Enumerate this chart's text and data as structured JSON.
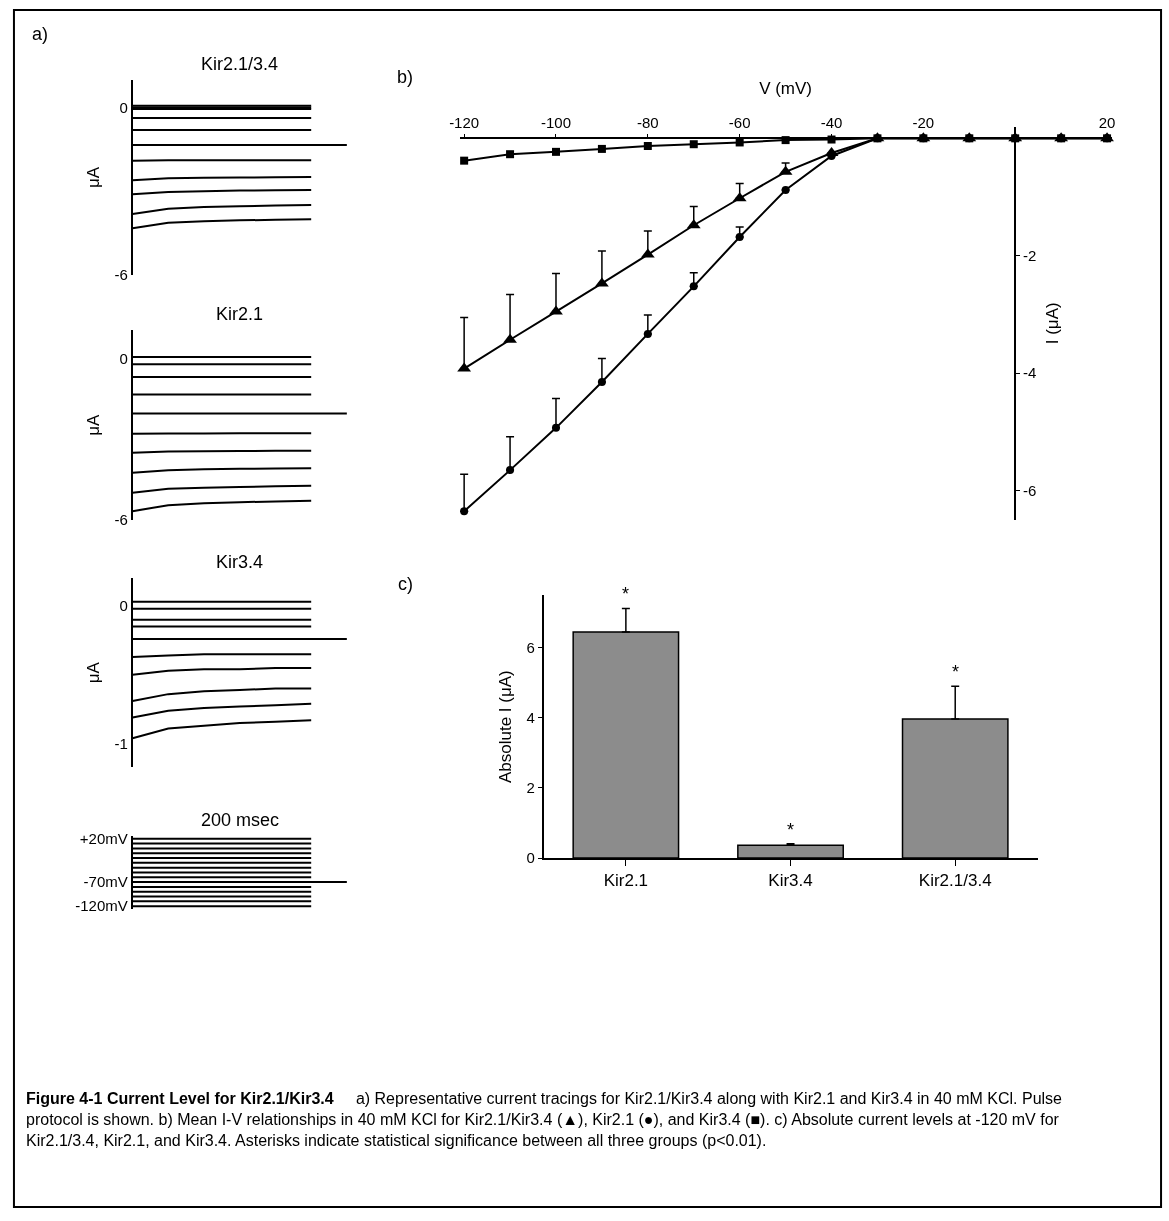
{
  "chart_data": [
    {
      "type": "line",
      "title": "Kir2.1/3.4",
      "ylabel": "μA",
      "categories": [
        null,
        null,
        null,
        null,
        null,
        null,
        null
      ],
      "tick_labels": "y",
      "marker": "none",
      "ylim": [
        -6,
        1
      ],
      "yticks": [
        0,
        -6
      ],
      "annotations": [
        "a)"
      ],
      "series": [
        {
          "color": "#000000",
          "values": [
            0.08,
            0.08,
            0.08,
            0.08,
            0.08,
            0.08,
            null
          ]
        },
        {
          "color": "#000000",
          "values": [
            0.02,
            0.02,
            0.02,
            0.02,
            0.02,
            0.02,
            null
          ]
        },
        {
          "color": "#000000",
          "values": [
            -0.04,
            -0.04,
            -0.04,
            -0.04,
            -0.04,
            -0.04,
            null
          ]
        },
        {
          "color": "#000000",
          "values": [
            -0.36,
            -0.36,
            -0.36,
            -0.36,
            -0.36,
            -0.36,
            null
          ]
        },
        {
          "color": "#000000",
          "values": [
            -0.79,
            -0.79,
            -0.79,
            -0.79,
            -0.79,
            -0.79,
            null
          ]
        },
        {
          "color": "#000000",
          "values": [
            -1.33,
            -1.33,
            -1.33,
            -1.33,
            -1.33,
            -1.33,
            -1.33
          ]
        },
        {
          "color": "#000000",
          "values": [
            -1.9,
            -1.88,
            -1.88,
            -1.88,
            -1.88,
            -1.88,
            null
          ]
        },
        {
          "color": "#000000",
          "values": [
            -2.6,
            -2.53,
            -2.51,
            -2.5,
            -2.49,
            -2.48,
            null
          ]
        },
        {
          "color": "#000000",
          "values": [
            -3.1,
            -3.02,
            -2.99,
            -2.97,
            -2.96,
            -2.95,
            null
          ]
        },
        {
          "color": "#000000",
          "values": [
            -3.81,
            -3.62,
            -3.56,
            -3.53,
            -3.51,
            -3.49,
            null
          ]
        },
        {
          "color": "#000000",
          "values": [
            -4.32,
            -4.13,
            -4.07,
            -4.04,
            -4.02,
            -4.0,
            null
          ]
        }
      ]
    },
    {
      "type": "line",
      "title": "Kir2.1",
      "ylabel": "μA",
      "categories": [
        null,
        null,
        null,
        null,
        null,
        null,
        null
      ],
      "tick_labels": "y",
      "marker": "none",
      "ylim": [
        -6,
        1.04
      ],
      "yticks": [
        0,
        -6
      ],
      "series": [
        {
          "color": "#000000",
          "values": [
            0.05,
            0.05,
            0.05,
            0.05,
            0.05,
            0.05,
            null
          ]
        },
        {
          "color": "#000000",
          "values": [
            -0.22,
            -0.22,
            -0.22,
            -0.22,
            -0.22,
            -0.22,
            null
          ]
        },
        {
          "color": "#000000",
          "values": [
            -0.69,
            -0.69,
            -0.69,
            -0.69,
            -0.69,
            -0.69,
            null
          ]
        },
        {
          "color": "#000000",
          "values": [
            -1.34,
            -1.34,
            -1.34,
            -1.34,
            -1.34,
            -1.34,
            null
          ]
        },
        {
          "color": "#000000",
          "values": [
            -2.05,
            -2.05,
            -2.05,
            -2.05,
            -2.05,
            -2.05,
            -2.05
          ]
        },
        {
          "color": "#000000",
          "values": [
            -2.8,
            -2.79,
            -2.79,
            -2.78,
            -2.78,
            -2.78,
            null
          ]
        },
        {
          "color": "#000000",
          "values": [
            -3.5,
            -3.46,
            -3.45,
            -3.44,
            -3.43,
            -3.43,
            null
          ]
        },
        {
          "color": "#000000",
          "values": [
            -4.25,
            -4.15,
            -4.12,
            -4.1,
            -4.09,
            -4.08,
            null
          ]
        },
        {
          "color": "#000000",
          "values": [
            -4.99,
            -4.84,
            -4.8,
            -4.77,
            -4.75,
            -4.73,
            null
          ]
        },
        {
          "color": "#000000",
          "values": [
            -5.67,
            -5.45,
            -5.38,
            -5.34,
            -5.31,
            -5.28,
            null
          ]
        }
      ]
    },
    {
      "type": "line",
      "title": "Kir3.4",
      "ylabel": "μA",
      "categories": [
        null,
        null,
        null,
        null,
        null,
        null,
        null
      ],
      "tick_labels": "y",
      "marker": "none",
      "ylim": [
        -1.17,
        0.2
      ],
      "yticks": [
        0,
        -1
      ],
      "series": [
        {
          "color": "#000000",
          "values": [
            0.03,
            0.03,
            0.03,
            0.03,
            0.03,
            0.03,
            null
          ]
        },
        {
          "color": "#000000",
          "values": [
            -0.02,
            -0.02,
            -0.02,
            -0.02,
            -0.02,
            -0.02,
            null
          ]
        },
        {
          "color": "#000000",
          "values": [
            -0.1,
            -0.1,
            -0.1,
            -0.1,
            -0.1,
            -0.1,
            null
          ]
        },
        {
          "color": "#000000",
          "values": [
            -0.15,
            -0.15,
            -0.15,
            -0.15,
            -0.15,
            -0.15,
            null
          ]
        },
        {
          "color": "#000000",
          "values": [
            -0.24,
            -0.24,
            -0.24,
            -0.24,
            -0.24,
            -0.24,
            -0.24
          ]
        },
        {
          "color": "#000000",
          "values": [
            -0.37,
            -0.36,
            -0.35,
            -0.35,
            -0.35,
            -0.35,
            null
          ]
        },
        {
          "color": "#000000",
          "values": [
            -0.5,
            -0.47,
            -0.46,
            -0.46,
            -0.45,
            -0.45,
            null
          ]
        },
        {
          "color": "#000000",
          "values": [
            -0.69,
            -0.64,
            -0.62,
            -0.61,
            -0.6,
            -0.6,
            null
          ]
        },
        {
          "color": "#000000",
          "values": [
            -0.81,
            -0.76,
            -0.74,
            -0.73,
            -0.72,
            -0.71,
            null
          ]
        },
        {
          "color": "#000000",
          "values": [
            -0.96,
            -0.89,
            -0.87,
            -0.85,
            -0.84,
            -0.83,
            null
          ]
        }
      ]
    },
    {
      "type": "line",
      "title": "200 msec",
      "categories": [
        null,
        null,
        null,
        null,
        null,
        null,
        null
      ],
      "tick_labels": "y",
      "marker": "none",
      "ylim": [
        -125,
        25
      ],
      "yticks": [
        {
          "value": 20,
          "label": "+20mV"
        },
        {
          "value": -70,
          "label": "-70mV"
        },
        {
          "value": -120,
          "label": "-120mV"
        }
      ],
      "series": [
        {
          "color": "#000000",
          "values": [
            20,
            20,
            20,
            20,
            20,
            20,
            null
          ]
        },
        {
          "color": "#000000",
          "values": [
            10,
            10,
            10,
            10,
            10,
            10,
            null
          ]
        },
        {
          "color": "#000000",
          "values": [
            0,
            0,
            0,
            0,
            0,
            0,
            null
          ]
        },
        {
          "color": "#000000",
          "values": [
            -10,
            -10,
            -10,
            -10,
            -10,
            -10,
            null
          ]
        },
        {
          "color": "#000000",
          "values": [
            -20,
            -20,
            -20,
            -20,
            -20,
            -20,
            null
          ]
        },
        {
          "color": "#000000",
          "values": [
            -30,
            -30,
            -30,
            -30,
            -30,
            -30,
            null
          ]
        },
        {
          "color": "#000000",
          "values": [
            -40,
            -40,
            -40,
            -40,
            -40,
            -40,
            null
          ]
        },
        {
          "color": "#000000",
          "values": [
            -50,
            -50,
            -50,
            -50,
            -50,
            -50,
            null
          ]
        },
        {
          "color": "#000000",
          "values": [
            -60,
            -60,
            -60,
            -60,
            -60,
            -60,
            null
          ]
        },
        {
          "color": "#000000",
          "values": [
            -70,
            -70,
            -70,
            -70,
            -70,
            -70,
            -70
          ]
        },
        {
          "color": "#000000",
          "values": [
            -80,
            -80,
            -80,
            -80,
            -80,
            -80,
            null
          ]
        },
        {
          "color": "#000000",
          "values": [
            -90,
            -90,
            -90,
            -90,
            -90,
            -90,
            null
          ]
        },
        {
          "color": "#000000",
          "values": [
            -100,
            -100,
            -100,
            -100,
            -100,
            -100,
            null
          ]
        },
        {
          "color": "#000000",
          "values": [
            -110,
            -110,
            -110,
            -110,
            -110,
            -110,
            null
          ]
        },
        {
          "color": "#000000",
          "values": [
            -120,
            -120,
            -120,
            -120,
            -120,
            -120,
            null
          ]
        }
      ]
    },
    {
      "type": "line",
      "xlabel": "V (mV)",
      "ylabel": "I (μA)",
      "x": [
        -120,
        -110,
        -100,
        -90,
        -80,
        -70,
        -60,
        -50,
        -40,
        -30,
        -20,
        -10,
        0,
        10,
        20
      ],
      "xlim": [
        -121,
        21
      ],
      "xticks": [
        -120,
        -100,
        -80,
        -60,
        -40,
        -20,
        20
      ],
      "ylim": [
        -6.5,
        0.2
      ],
      "yticks": [
        -2,
        -4,
        -6
      ],
      "annotations": [
        "b)"
      ],
      "series": [
        {
          "color": "#000000",
          "marker": "square",
          "values": [
            -0.38,
            -0.27,
            -0.23,
            -0.18,
            -0.13,
            -0.1,
            -0.07,
            -0.03,
            -0.02,
            0,
            0,
            0,
            0,
            0,
            0
          ]
        },
        {
          "color": "#000000",
          "marker": "triangle",
          "values": [
            -3.92,
            -3.43,
            -2.95,
            -2.47,
            -1.98,
            -1.48,
            -1.02,
            -0.57,
            -0.25,
            0,
            0,
            0,
            0,
            0,
            0
          ],
          "errors": [
            [
              -3.92,
              -3.05
            ],
            [
              -3.43,
              -2.66
            ],
            [
              -2.95,
              -2.3
            ],
            [
              -2.47,
              -1.92
            ],
            [
              -1.98,
              -1.58
            ],
            [
              -1.48,
              -1.16
            ],
            [
              -1.02,
              -0.77
            ],
            [
              -0.57,
              -0.42
            ],
            null,
            null,
            null,
            null,
            null,
            null,
            null
          ]
        },
        {
          "color": "#000000",
          "marker": "circle",
          "values": [
            -6.35,
            -5.65,
            -4.93,
            -4.15,
            -3.33,
            -2.52,
            -1.68,
            -0.88,
            -0.3,
            0,
            0,
            0,
            0,
            0,
            0
          ],
          "errors": [
            [
              -6.35,
              -5.72
            ],
            [
              -5.65,
              -5.08
            ],
            [
              -4.93,
              -4.43
            ],
            [
              -4.15,
              -3.75
            ],
            [
              -3.33,
              -3.01
            ],
            [
              -2.52,
              -2.29
            ],
            [
              -1.68,
              -1.51
            ],
            null,
            null,
            null,
            null,
            null,
            null,
            null,
            null
          ]
        }
      ]
    },
    {
      "type": "bar",
      "ylabel": "Absolute I (μA)",
      "categories": [
        "Kir2.1",
        "Kir3.4",
        "Kir2.1/3.4"
      ],
      "values": [
        6.45,
        0.37,
        3.97
      ],
      "errors": [
        [
          6.45,
          7.12
        ],
        [
          0.37,
          0.41
        ],
        [
          3.97,
          4.9
        ]
      ],
      "color": "#8c8c8c",
      "ylim": [
        0,
        7.5
      ],
      "yticks": [
        0,
        2,
        4,
        6
      ],
      "annotations": [
        "c)",
        "*",
        "*",
        "*",
        "Figure 4-1 Current Level for Kir2.1/Kir3.4",
        "a) Representative current tracings for Kir2.1/Kir3.4 along with Kir2.1 and Kir3.4 in 40 mM KCl. Pulse protocol is shown. b) Mean I-V relationships in 40 mM KCl for Kir2.1/Kir3.4 (▲), Kir2.1 (●), and Kir3.4 (■). c) Absolute current levels at -120 mV for Kir2.1/3.4, Kir2.1, and Kir3.4. Asterisks indicate statistical significance between all three groups (p<0.01)."
      ]
    }
  ]
}
